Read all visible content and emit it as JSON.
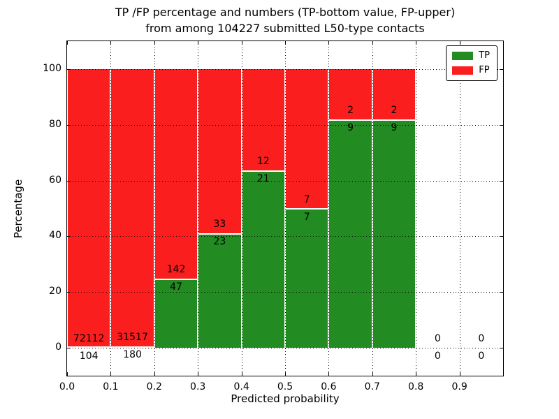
{
  "title": {
    "line1": "TP /FP percentage and numbers (TP-bottom value, FP-upper)",
    "line2": "from among 104227 submitted L50-type contacts"
  },
  "axes": {
    "xlabel": "Predicted probability",
    "ylabel": "Percentage",
    "x_tick_labels": [
      "0.0",
      "0.1",
      "0.2",
      "0.3",
      "0.4",
      "0.5",
      "0.6",
      "0.7",
      "0.8",
      "0.9"
    ],
    "y_tick_labels": [
      "0",
      "20",
      "40",
      "60",
      "80",
      "100"
    ],
    "xlim": [
      0.0,
      1.0
    ],
    "ylim": [
      -10,
      110
    ],
    "grid_style": "dotted"
  },
  "legend": {
    "position": "upper right",
    "tp_label": "TP",
    "fp_label": "FP"
  },
  "colors": {
    "tp_green": "#228b22",
    "fp_red": "#fa1e1e",
    "grid": "#000000",
    "bar_edge": "#ffffff"
  },
  "chart_data": {
    "type": "bar",
    "stacked": true,
    "normalized_to_percent": 100,
    "title": "TP /FP percentage and numbers (TP-bottom value, FP-upper) from among 104227 submitted L50-type contacts",
    "xlabel": "Predicted probability",
    "ylabel": "Percentage",
    "bin_width": 0.1,
    "bins": [
      {
        "x0": 0.0,
        "x1": 0.1,
        "tp": 104,
        "fp": 72112,
        "tp_pct": 0.14
      },
      {
        "x0": 0.1,
        "x1": 0.2,
        "tp": 180,
        "fp": 31517,
        "tp_pct": 0.57
      },
      {
        "x0": 0.2,
        "x1": 0.3,
        "tp": 47,
        "fp": 142,
        "tp_pct": 24.87
      },
      {
        "x0": 0.3,
        "x1": 0.4,
        "tp": 23,
        "fp": 33,
        "tp_pct": 41.07
      },
      {
        "x0": 0.4,
        "x1": 0.5,
        "tp": 21,
        "fp": 12,
        "tp_pct": 63.64
      },
      {
        "x0": 0.5,
        "x1": 0.6,
        "tp": 7,
        "fp": 7,
        "tp_pct": 50.0
      },
      {
        "x0": 0.6,
        "x1": 0.7,
        "tp": 9,
        "fp": 2,
        "tp_pct": 81.82
      },
      {
        "x0": 0.7,
        "x1": 0.8,
        "tp": 9,
        "fp": 2,
        "tp_pct": 81.82
      },
      {
        "x0": 0.8,
        "x1": 0.9,
        "tp": 0,
        "fp": 0,
        "tp_pct": null
      },
      {
        "x0": 0.9,
        "x1": 1.0,
        "tp": 0,
        "fp": 0,
        "tp_pct": null
      }
    ]
  }
}
